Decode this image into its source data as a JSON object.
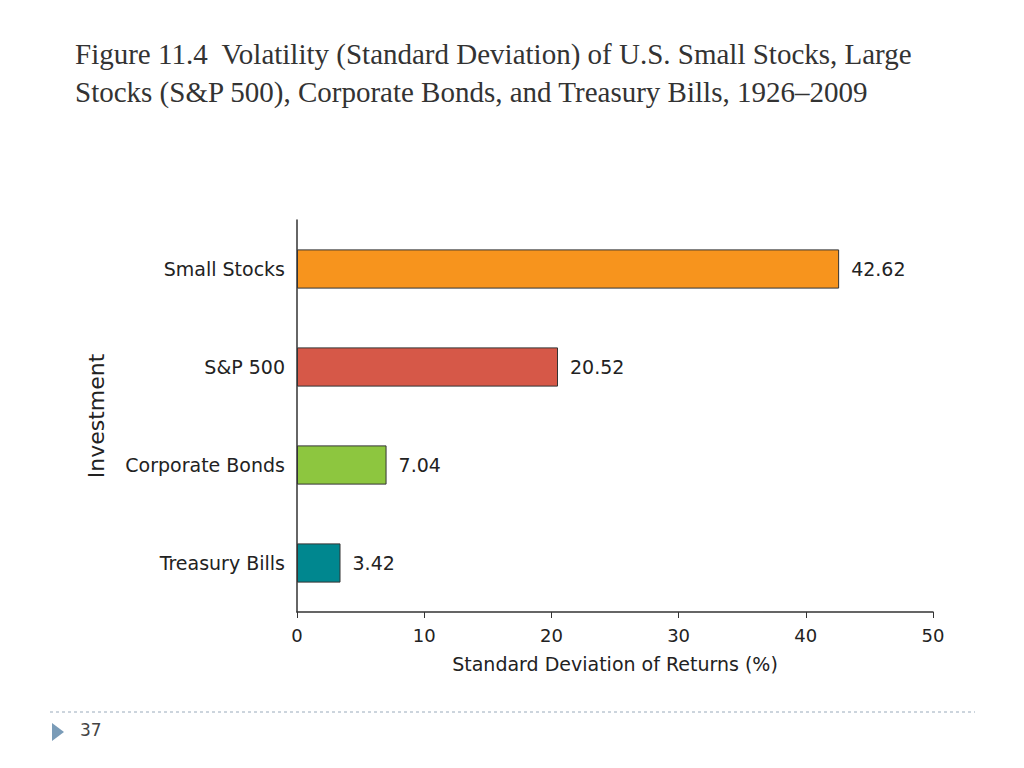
{
  "chart_data": {
    "type": "bar",
    "title": "Figure 11.4  Volatility (Standard Deviation) of U.S. Small Stocks, Large Stocks (S&P 500), Corporate Bonds, and Treasury Bills, 1926–2009",
    "x_label": "Standard Deviation of Returns (%)",
    "y_label": "Investment",
    "categories": [
      "Small Stocks",
      "S&P 500",
      "Corporate Bonds",
      "Treasury Bills"
    ],
    "values": [
      42.62,
      20.52,
      7.04,
      3.42
    ],
    "colors": [
      "#f7941d",
      "#d65848",
      "#8dc63f",
      "#00878f"
    ],
    "orientation": "horizontal",
    "data_labels": true,
    "grid": false,
    "xlim": [
      0,
      50
    ],
    "xticks": [
      0,
      10,
      20,
      30,
      40,
      50
    ],
    "annotations": [
      "37"
    ]
  }
}
